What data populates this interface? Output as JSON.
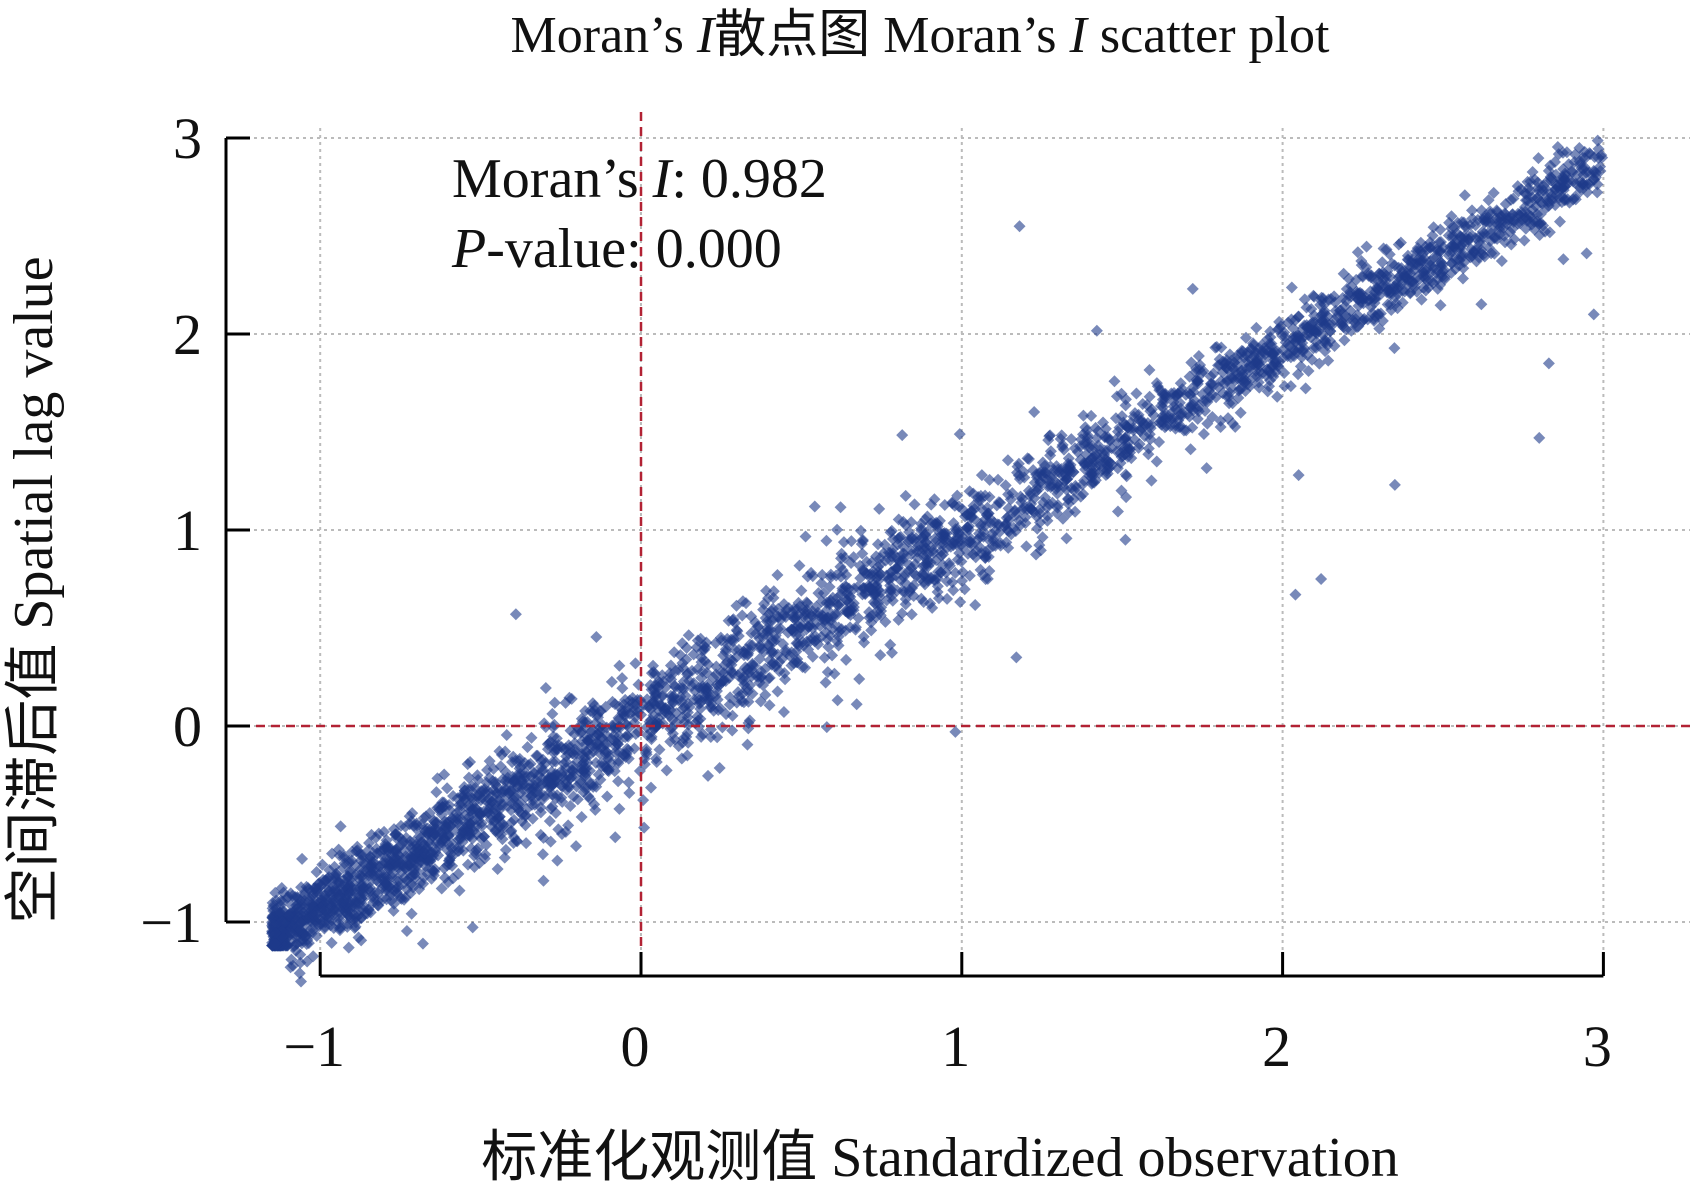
{
  "chart_data": {
    "type": "scatter",
    "title": "Moran’s I散点图 Moran’s I scatter plot",
    "title_parts": {
      "prefix": "Moran’s ",
      "italic": "I",
      "suffix": "散点图 Moran’s ",
      "italic2": "I",
      "suffix2": " scatter plot"
    },
    "xlabel": "标准化观测值 Standardized observation",
    "ylabel": "空间滞后值 Spatial lag value",
    "xlim": [
      -1.3,
      3.6
    ],
    "ylim": [
      -1.15,
      3.05
    ],
    "xticks": [
      -1,
      0,
      1,
      2,
      3
    ],
    "yticks": [
      -1,
      0,
      1,
      2,
      3
    ],
    "xtick_labels": [
      "−1",
      "0",
      "1",
      "2",
      "3"
    ],
    "ytick_labels": [
      "−1",
      "0",
      "1",
      "2",
      "3"
    ],
    "grid": true,
    "reference_lines": {
      "x": 0,
      "y": 0,
      "style": "dashed",
      "color": "#b22234"
    },
    "annotation": {
      "moran_label": "Moran’s ",
      "moran_italic": "I",
      "moran_value": ": 0.982",
      "p_italic": "P",
      "p_label": "-value: 0.000"
    },
    "moran_i": 0.982,
    "p_value": 0.0,
    "marker": {
      "shape": "diamond",
      "color": "#1e3a8a",
      "opacity": 0.6
    },
    "point_cloud": {
      "n": 3500,
      "x_range": [
        -1.15,
        3.0
      ],
      "slope": 0.95,
      "intercept": 0.02,
      "noise_sd": 0.1
    },
    "outliers": [
      {
        "x": -0.39,
        "y": 0.57
      },
      {
        "x": 1.18,
        "y": 2.55
      },
      {
        "x": 1.51,
        "y": 0.95
      },
      {
        "x": 2.04,
        "y": 0.67
      },
      {
        "x": 2.12,
        "y": 0.75
      },
      {
        "x": 0.98,
        "y": -0.03
      },
      {
        "x": 1.17,
        "y": 0.35
      },
      {
        "x": 2.8,
        "y": 1.47
      },
      {
        "x": 2.83,
        "y": 1.85
      },
      {
        "x": 2.35,
        "y": 1.23
      },
      {
        "x": 1.65,
        "y": 1.53
      },
      {
        "x": 2.05,
        "y": 1.28
      },
      {
        "x": 2.97,
        "y": 2.1
      },
      {
        "x": 1.72,
        "y": 2.23
      }
    ]
  }
}
